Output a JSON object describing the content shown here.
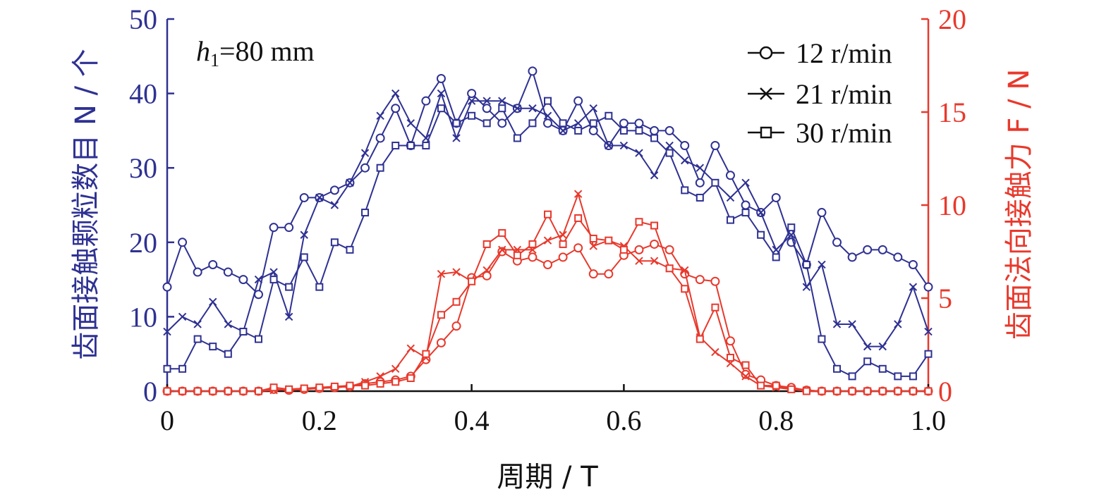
{
  "chart_data": {
    "type": "line",
    "annotation": {
      "var": "h",
      "sub": "1",
      "text": "=80 mm"
    },
    "xlabel": "周期 / T",
    "ylabel_left": "齿面接触颗粒数目 N / 个",
    "ylabel_right": "齿面法向接触力 F / N",
    "xlim": [
      0,
      1.0
    ],
    "ylim_left": [
      0,
      50
    ],
    "ylim_right": [
      0,
      20
    ],
    "xticks": [
      0,
      0.2,
      0.4,
      0.6,
      0.8,
      1.0
    ],
    "xtick_labels": [
      "0",
      "0.2",
      "0.4",
      "0.6",
      "0.8",
      "1.0"
    ],
    "yticks_left": [
      0,
      10,
      20,
      30,
      40,
      50
    ],
    "yticks_right": [
      0,
      5,
      10,
      15,
      20
    ],
    "colors": {
      "left": "#2e3192",
      "right": "#e8392c",
      "text": "#111111"
    },
    "legend": {
      "placement": "top-right",
      "entries": [
        {
          "label": "12 r/min",
          "marker": "circle"
        },
        {
          "label": "21 r/min",
          "marker": "cross"
        },
        {
          "label": "30 r/min",
          "marker": "square"
        }
      ]
    },
    "x": [
      0,
      0.02,
      0.04,
      0.06,
      0.08,
      0.1,
      0.12,
      0.14,
      0.16,
      0.18,
      0.2,
      0.22,
      0.24,
      0.26,
      0.28,
      0.3,
      0.32,
      0.34,
      0.36,
      0.38,
      0.4,
      0.42,
      0.44,
      0.46,
      0.48,
      0.5,
      0.52,
      0.54,
      0.56,
      0.58,
      0.6,
      0.62,
      0.64,
      0.66,
      0.68,
      0.7,
      0.72,
      0.74,
      0.76,
      0.78,
      0.8,
      0.82,
      0.84,
      0.86,
      0.88,
      0.9,
      0.92,
      0.94,
      0.96,
      0.98,
      1.0
    ],
    "series": [
      {
        "axis": "left",
        "marker": "circle",
        "values": [
          14,
          20,
          16,
          17,
          16,
          15,
          13,
          22,
          22,
          26,
          26,
          27,
          28,
          30,
          34,
          38,
          33,
          39,
          42,
          36,
          40,
          38,
          36,
          38,
          43,
          36,
          35,
          39,
          35,
          33,
          36,
          36,
          35,
          35,
          33,
          28,
          33,
          29,
          25,
          24,
          26,
          20,
          17,
          24,
          20,
          18,
          19,
          19,
          18,
          17,
          14
        ]
      },
      {
        "axis": "left",
        "marker": "cross",
        "values": [
          8,
          10,
          9,
          12,
          9,
          8,
          15,
          16,
          10,
          21,
          26,
          25,
          28,
          32,
          37,
          40,
          36,
          34,
          40,
          34,
          39,
          39,
          39,
          38,
          38,
          37,
          35,
          36,
          38,
          33,
          33,
          32,
          29,
          33,
          31,
          30,
          28,
          26,
          28,
          24,
          19,
          21,
          14,
          17,
          9,
          9,
          6,
          6,
          9,
          14,
          8
        ]
      },
      {
        "axis": "left",
        "marker": "square",
        "values": [
          3,
          3,
          7,
          6,
          5,
          8,
          7,
          15,
          14,
          18,
          14,
          20,
          19,
          24,
          30,
          33,
          33,
          33,
          38,
          36,
          37,
          36,
          38,
          34,
          36,
          39,
          36,
          35,
          36,
          37,
          35,
          35,
          34,
          32,
          27,
          26,
          28,
          23,
          24,
          21,
          18,
          22,
          17,
          7,
          3,
          2,
          4,
          3,
          2,
          2,
          5
        ]
      },
      {
        "axis": "right",
        "marker": "circle",
        "values": [
          0,
          0,
          0,
          0,
          0,
          0,
          0,
          0.1,
          0.05,
          0.1,
          0.15,
          0.2,
          0.25,
          0.4,
          0.5,
          0.6,
          0.8,
          1.7,
          2.6,
          3.5,
          6.1,
          6.2,
          7.5,
          7.0,
          7.2,
          6.8,
          7.2,
          7.7,
          6.3,
          6.3,
          7.3,
          7.6,
          7.9,
          7.6,
          6.3,
          6.0,
          5.9,
          2.7,
          0.9,
          0.6,
          0.3,
          0.2,
          0.05,
          0,
          0,
          0,
          0,
          0,
          0,
          0,
          0
        ]
      },
      {
        "axis": "right",
        "marker": "cross",
        "values": [
          0,
          0,
          0,
          0,
          0,
          0,
          0,
          0.05,
          0.1,
          0.15,
          0.15,
          0.2,
          0.25,
          0.5,
          0.8,
          1.2,
          2.3,
          1.8,
          6.3,
          6.4,
          5.9,
          6.5,
          7.6,
          7.6,
          7.6,
          8.1,
          8.4,
          10.6,
          7.8,
          8.1,
          7.8,
          7.0,
          7.0,
          6.6,
          6.5,
          2.9,
          2.1,
          1.5,
          0.8,
          0.3,
          0.2,
          0.1,
          0.05,
          0,
          0,
          0,
          0,
          0,
          0,
          0,
          0
        ]
      },
      {
        "axis": "right",
        "marker": "square",
        "values": [
          0,
          0,
          0,
          0,
          0,
          0,
          0,
          0.2,
          0.1,
          0.15,
          0.2,
          0.25,
          0.3,
          0.3,
          0.4,
          0.5,
          0.7,
          2.0,
          4.1,
          4.8,
          5.9,
          7.9,
          8.5,
          7.3,
          7.9,
          9.5,
          7.9,
          9.3,
          8.2,
          8.1,
          7.6,
          9.1,
          8.9,
          6.6,
          5.5,
          2.8,
          4.5,
          1.8,
          1.4,
          0.3,
          0.3,
          0.1,
          0,
          0,
          0,
          0,
          0,
          0,
          0,
          0,
          0
        ]
      }
    ]
  }
}
